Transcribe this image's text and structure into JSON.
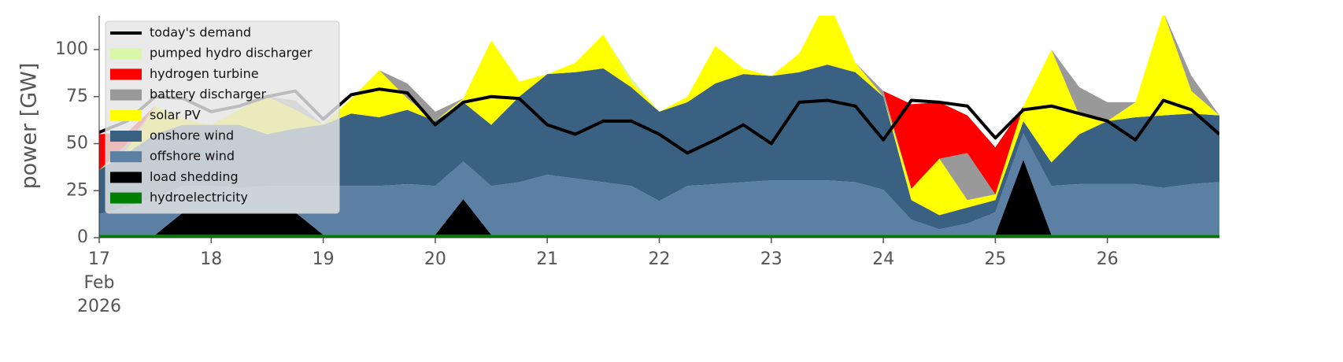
{
  "chart_data": {
    "type": "area",
    "y_label": "power [GW]",
    "x": [
      17,
      17.25,
      17.5,
      17.75,
      18,
      18.25,
      18.5,
      18.75,
      19,
      19.25,
      19.5,
      19.75,
      20,
      20.25,
      20.5,
      20.75,
      21,
      21.25,
      21.5,
      21.75,
      22,
      22.25,
      22.5,
      22.75,
      23,
      23.25,
      23.5,
      23.75,
      24,
      24.25,
      24.5,
      24.75,
      25,
      25.25,
      25.5,
      25.75,
      26,
      26.25,
      26.5,
      26.75,
      27
    ],
    "xlim": [
      17,
      27
    ],
    "xticks": [
      17,
      18,
      19,
      20,
      21,
      22,
      23,
      24,
      25,
      26
    ],
    "x_date_label": [
      "Feb",
      "2026"
    ],
    "ylim": [
      0,
      118
    ],
    "yticks": [
      0,
      25,
      50,
      75,
      100
    ],
    "lines": [
      {
        "name": "today's demand",
        "color": "#000000",
        "values": [
          56,
          62,
          75,
          74,
          67,
          70,
          75,
          78,
          63,
          76,
          79,
          77,
          60,
          72,
          75,
          74,
          60,
          55,
          62,
          62,
          55,
          45,
          52,
          60,
          50,
          72,
          73,
          70,
          52,
          73,
          72,
          70,
          53,
          68,
          70,
          66,
          62,
          52,
          73,
          68,
          55
        ]
      }
    ],
    "series": [
      {
        "name": "pumped hydro discharger",
        "color": "#d9f7a8",
        "values": [
          0,
          0,
          0,
          0,
          0,
          0,
          0,
          0,
          0,
          0,
          0,
          0,
          0,
          0,
          0,
          0,
          0,
          0,
          0,
          2,
          0,
          0,
          0,
          0,
          0,
          0,
          0,
          0,
          0,
          0,
          0,
          0,
          0,
          0,
          0,
          0,
          0,
          0,
          0,
          0,
          0
        ]
      },
      {
        "name": "hydrogen turbine",
        "color": "#ff0000",
        "values": [
          19,
          6,
          0,
          0,
          0,
          0,
          0,
          0,
          0,
          0,
          0,
          0,
          0,
          0,
          0,
          0,
          0,
          0,
          0,
          0,
          0,
          0,
          0,
          0,
          0,
          0,
          0,
          0,
          0,
          45,
          30,
          20,
          25,
          0,
          0,
          0,
          0,
          0,
          0,
          0,
          0
        ]
      },
      {
        "name": "battery discharger",
        "color": "#999999",
        "values": [
          0,
          3,
          0,
          0,
          0,
          0,
          0,
          5,
          0,
          0,
          0,
          8,
          5,
          0,
          0,
          0,
          0,
          0,
          0,
          0,
          0,
          0,
          0,
          0,
          0,
          0,
          0,
          0,
          3,
          0,
          0,
          25,
          0,
          0,
          0,
          15,
          10,
          0,
          0,
          8,
          0
        ]
      },
      {
        "name": "solar PV",
        "color": "#ffff00",
        "values": [
          0,
          2,
          15,
          3,
          0,
          8,
          20,
          10,
          0,
          8,
          25,
          6,
          0,
          2,
          45,
          8,
          0,
          5,
          18,
          3,
          0,
          3,
          20,
          3,
          0,
          10,
          35,
          5,
          0,
          6,
          30,
          4,
          3,
          8,
          60,
          10,
          0,
          8,
          55,
          12,
          0
        ]
      },
      {
        "name": "onshore wind",
        "color": "#3b6182",
        "values": [
          23.5,
          28.5,
          33.5,
          32.5,
          32.5,
          33.5,
          27.5,
          30.5,
          32.5,
          38.5,
          36.5,
          39.5,
          34.5,
          31.5,
          32.5,
          45.5,
          53.5,
          56.5,
          60.5,
          52.5,
          47.5,
          44.5,
          53.5,
          57.5,
          55.5,
          57.5,
          61.5,
          58.5,
          49.5,
          10.5,
          7.5,
          8.5,
          6.5,
          6.5,
          12.5,
          26.5,
          33.5,
          35.5,
          38.5,
          37.5,
          35.5
        ]
      },
      {
        "name": "offshore wind",
        "color": "#5b80a3",
        "values": [
          11,
          15,
          20,
          14,
          14,
          13,
          14,
          14,
          26,
          26,
          26,
          27,
          26,
          20,
          26,
          28,
          32,
          30,
          28,
          26,
          18,
          26,
          27,
          28,
          29,
          29,
          29,
          28,
          24,
          8,
          3,
          6,
          12,
          14,
          26,
          27,
          27,
          27,
          25,
          27,
          28
        ]
      },
      {
        "name": "load shedding",
        "color": "#000000",
        "values": [
          0,
          0,
          0,
          12,
          12,
          12,
          12,
          12,
          0,
          0,
          0,
          0,
          0,
          19,
          0,
          0,
          0,
          0,
          0,
          0,
          0,
          0,
          0,
          0,
          0,
          0,
          0,
          0,
          0,
          0,
          0,
          0,
          0,
          40,
          0,
          0,
          0,
          0,
          0,
          0,
          0
        ]
      },
      {
        "name": "hydroelectricity",
        "color": "#008000",
        "values": [
          1.5,
          1.5,
          1.5,
          1.5,
          1.5,
          1.5,
          1.5,
          1.5,
          1.5,
          1.5,
          1.5,
          1.5,
          1.5,
          1.5,
          1.5,
          1.5,
          1.5,
          1.5,
          1.5,
          1.5,
          1.5,
          1.5,
          1.5,
          1.5,
          1.5,
          1.5,
          1.5,
          1.5,
          1.5,
          1.5,
          1.5,
          1.5,
          1.5,
          1.5,
          1.5,
          1.5,
          1.5,
          1.5,
          1.5,
          1.5,
          1.5
        ]
      }
    ]
  }
}
